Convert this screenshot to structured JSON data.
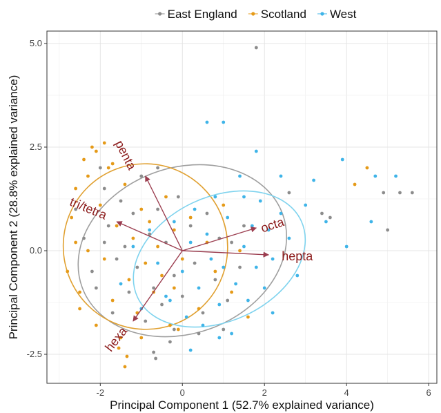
{
  "chart_data": {
    "type": "scatter",
    "title": "",
    "xlabel": "Principal Component 1 (52.7% explained variance)",
    "ylabel": "Principal Component 2 (28.8% explained variance)",
    "xlim": [
      -3.3,
      6.2
    ],
    "ylim": [
      -3.2,
      5.3
    ],
    "xticks": [
      -2,
      0,
      2,
      4,
      6
    ],
    "yticks": [
      -2.5,
      0.0,
      2.5,
      5.0
    ],
    "xtick_labels": [
      "-2",
      "0",
      "2",
      "4",
      "6"
    ],
    "ytick_labels": [
      "-2.5",
      "0.0",
      "2.5",
      "5.0"
    ],
    "grid": true,
    "legend_position": "top",
    "series": [
      {
        "name": "East England",
        "color": "#8c8c8c",
        "points": [
          [
            -2.6,
            1.0
          ],
          [
            -2.4,
            0.3
          ],
          [
            -2.2,
            -0.5
          ],
          [
            -2.0,
            2.0
          ],
          [
            -1.9,
            1.5
          ],
          [
            -1.8,
            0.6
          ],
          [
            -1.6,
            -0.2
          ],
          [
            -1.5,
            1.2
          ],
          [
            -1.4,
            0.1
          ],
          [
            -1.3,
            -1.0
          ],
          [
            -1.2,
            0.9
          ],
          [
            -1.1,
            -0.4
          ],
          [
            -1.0,
            1.8
          ],
          [
            -0.9,
            -1.7
          ],
          [
            -0.8,
            0.4
          ],
          [
            -0.7,
            -0.9
          ],
          [
            -0.6,
            1.0
          ],
          [
            -0.5,
            -1.3
          ],
          [
            -0.4,
            0.2
          ],
          [
            -0.3,
            -2.2
          ],
          [
            -0.2,
            -0.6
          ],
          [
            -0.1,
            1.3
          ],
          [
            0.0,
            -1.1
          ],
          [
            0.2,
            0.6
          ],
          [
            0.3,
            -0.3
          ],
          [
            0.5,
            -1.5
          ],
          [
            0.6,
            0.9
          ],
          [
            0.8,
            -0.7
          ],
          [
            0.9,
            0.3
          ],
          [
            1.1,
            -1.2
          ],
          [
            1.2,
            0.2
          ],
          [
            1.4,
            -0.4
          ],
          [
            1.5,
            0.6
          ],
          [
            1.8,
            4.9
          ],
          [
            -0.7,
            -2.45
          ],
          [
            -0.65,
            -2.6
          ],
          [
            3.4,
            0.9
          ],
          [
            3.6,
            0.8
          ],
          [
            4.9,
            1.4
          ],
          [
            5.3,
            1.4
          ],
          [
            5.6,
            1.4
          ],
          [
            5.0,
            0.5
          ],
          [
            -1.7,
            -1.5
          ],
          [
            -2.1,
            -0.9
          ],
          [
            -0.2,
            -1.9
          ],
          [
            0.4,
            -2.0
          ],
          [
            1.0,
            -1.9
          ],
          [
            -1.9,
            0.2
          ],
          [
            -0.6,
            2.0
          ],
          [
            2.6,
            1.4
          ]
        ]
      },
      {
        "name": "Scotland",
        "color": "#e59a18",
        "points": [
          [
            -2.8,
            -0.5
          ],
          [
            -2.7,
            0.8
          ],
          [
            -2.6,
            1.5
          ],
          [
            -2.5,
            -1.0
          ],
          [
            -2.4,
            2.2
          ],
          [
            -2.3,
            0.0
          ],
          [
            -2.2,
            2.5
          ],
          [
            -2.1,
            -1.8
          ],
          [
            -2.0,
            1.1
          ],
          [
            -1.9,
            -0.2
          ],
          [
            -1.8,
            2.0
          ],
          [
            -1.7,
            -1.2
          ],
          [
            -1.6,
            0.6
          ],
          [
            -1.5,
            -2.1
          ],
          [
            -1.4,
            1.6
          ],
          [
            -1.3,
            -0.7
          ],
          [
            -1.2,
            0.3
          ],
          [
            -1.1,
            -1.5
          ],
          [
            -1.0,
            1.0
          ],
          [
            -0.9,
            -0.3
          ],
          [
            -0.8,
            0.7
          ],
          [
            -0.7,
            -1.0
          ],
          [
            -0.6,
            0.1
          ],
          [
            -0.5,
            -0.6
          ],
          [
            -0.4,
            1.3
          ],
          [
            -0.3,
            -1.8
          ],
          [
            -0.2,
            0.5
          ],
          [
            0.0,
            -0.2
          ],
          [
            0.2,
            0.8
          ],
          [
            0.4,
            -1.4
          ],
          [
            0.6,
            0.2
          ],
          [
            0.8,
            -0.5
          ],
          [
            1.0,
            1.1
          ],
          [
            1.2,
            -1.0
          ],
          [
            1.4,
            0.0
          ],
          [
            1.6,
            -1.6
          ],
          [
            -1.9,
            2.6
          ],
          [
            -2.1,
            2.4
          ],
          [
            -1.4,
            -2.8
          ],
          [
            -1.35,
            -2.55
          ],
          [
            -1.55,
            -2.35
          ],
          [
            -2.5,
            -1.4
          ],
          [
            -1.0,
            -2.1
          ],
          [
            4.5,
            2.0
          ],
          [
            4.2,
            1.6
          ],
          [
            -0.1,
            -1.9
          ],
          [
            -2.6,
            0.2
          ],
          [
            -2.3,
            1.8
          ],
          [
            -1.7,
            2.1
          ],
          [
            -0.2,
            -0.9
          ]
        ]
      },
      {
        "name": "West",
        "color": "#3fb4e8",
        "points": [
          [
            -1.5,
            -0.8
          ],
          [
            -1.2,
            0.1
          ],
          [
            -1.0,
            -1.4
          ],
          [
            -0.8,
            0.5
          ],
          [
            -0.6,
            -0.3
          ],
          [
            -0.4,
            -1.1
          ],
          [
            -0.2,
            0.7
          ],
          [
            0.0,
            -0.5
          ],
          [
            0.1,
            -1.6
          ],
          [
            0.2,
            0.2
          ],
          [
            0.3,
            1.0
          ],
          [
            0.4,
            -0.9
          ],
          [
            0.5,
            -1.8
          ],
          [
            0.6,
            0.4
          ],
          [
            0.7,
            -0.2
          ],
          [
            0.8,
            1.3
          ],
          [
            0.9,
            -1.3
          ],
          [
            1.0,
            -0.4
          ],
          [
            1.1,
            0.8
          ],
          [
            1.2,
            -2.0
          ],
          [
            1.3,
            -0.8
          ],
          [
            1.4,
            1.8
          ],
          [
            1.5,
            0.1
          ],
          [
            1.6,
            -1.2
          ],
          [
            1.7,
            0.6
          ],
          [
            1.8,
            -0.4
          ],
          [
            1.9,
            1.2
          ],
          [
            2.0,
            -0.9
          ],
          [
            2.1,
            0.5
          ],
          [
            2.2,
            -0.2
          ],
          [
            2.4,
            0.9
          ],
          [
            2.6,
            0.3
          ],
          [
            2.8,
            -0.6
          ],
          [
            3.0,
            1.1
          ],
          [
            3.2,
            1.7
          ],
          [
            3.5,
            0.7
          ],
          [
            3.9,
            2.2
          ],
          [
            4.0,
            0.1
          ],
          [
            4.6,
            0.7
          ],
          [
            5.2,
            1.8
          ],
          [
            4.7,
            1.8
          ],
          [
            0.6,
            3.1
          ],
          [
            1.0,
            3.1
          ],
          [
            1.8,
            2.4
          ],
          [
            1.5,
            1.3
          ],
          [
            2.4,
            1.8
          ],
          [
            2.2,
            -1.5
          ],
          [
            0.9,
            -2.1
          ],
          [
            -0.3,
            -1.2
          ],
          [
            0.2,
            -2.4
          ]
        ]
      }
    ],
    "ellipses": [
      {
        "series": "East England",
        "color": "#9e9e9e",
        "cx": 0.0,
        "cy": 0.0,
        "rx": 2.6,
        "ry": 2.0,
        "rotation_deg": -20
      },
      {
        "series": "Scotland",
        "color": "#e0a030",
        "cx": -0.9,
        "cy": 0.1,
        "rx": 2.0,
        "ry": 2.0,
        "rotation_deg": -20
      },
      {
        "series": "West",
        "color": "#7fd3ee",
        "cx": 0.9,
        "cy": -0.2,
        "rx": 2.2,
        "ry": 1.5,
        "rotation_deg": -25
      }
    ],
    "loadings": [
      {
        "label": "penta",
        "x": -0.9,
        "y": 1.8,
        "label_x": -1.4,
        "label_y": 2.3,
        "label_rotation": 63
      },
      {
        "label": "tri/tetra",
        "x": -1.6,
        "y": 0.7,
        "label_x": -2.3,
        "label_y": 1.0,
        "label_rotation": 22
      },
      {
        "label": "octa",
        "x": 1.8,
        "y": 0.55,
        "label_x": 2.2,
        "label_y": 0.6,
        "label_rotation": -18
      },
      {
        "label": "hepta",
        "x": 2.1,
        "y": -0.1,
        "label_x": 2.8,
        "label_y": -0.15,
        "label_rotation": 0
      },
      {
        "label": "hexa",
        "x": -1.2,
        "y": -1.7,
        "label_x": -1.6,
        "label_y": -2.15,
        "label_rotation": -52
      }
    ],
    "arrow_color": "#9b3d4f"
  }
}
